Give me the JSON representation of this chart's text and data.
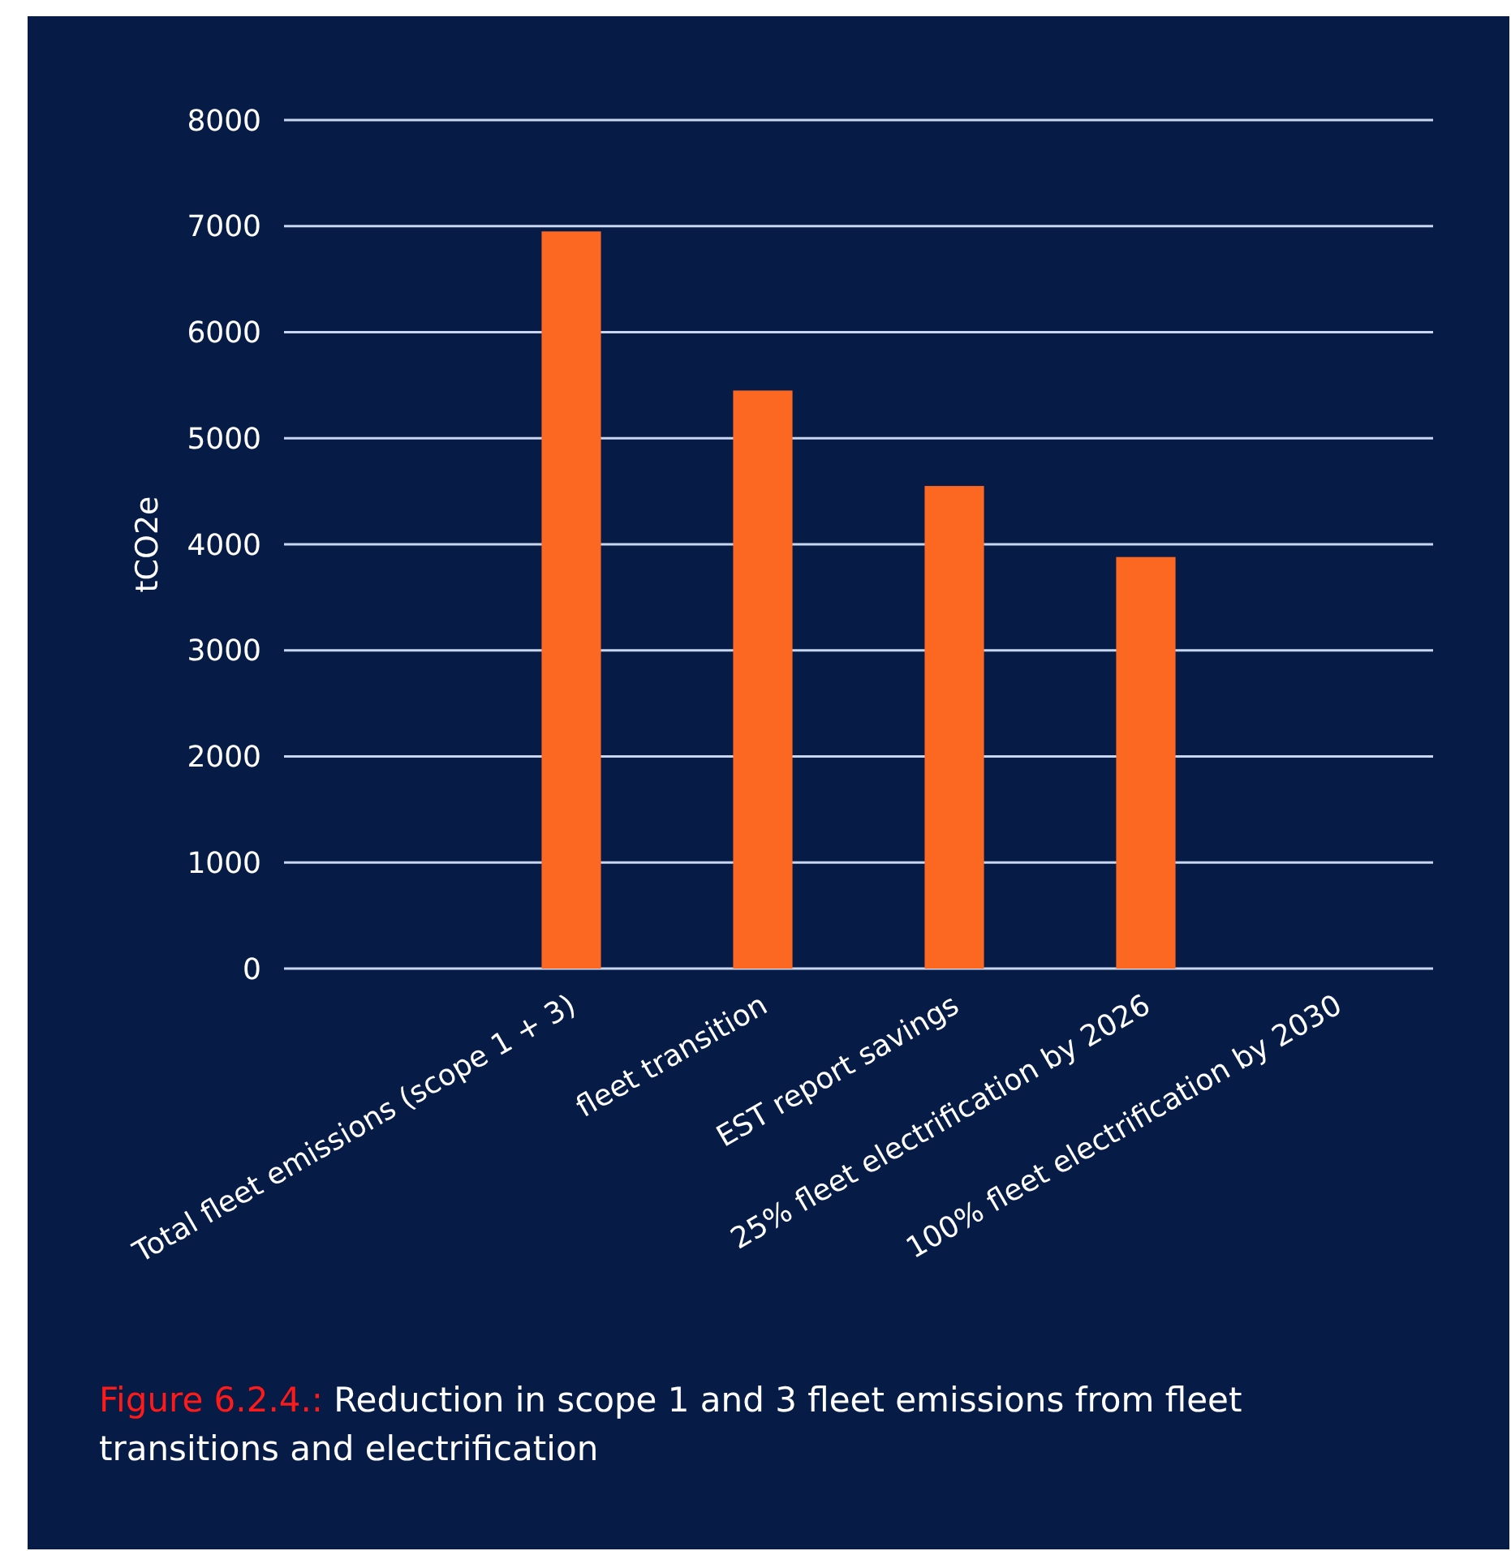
{
  "chart_data": {
    "type": "bar",
    "ylabel": "tCO2e",
    "categories": [
      null,
      "Total fleet emissions (scope 1 + 3)",
      "fleet transition",
      "EST report savings",
      "25% fleet electrification by 2026",
      "100% fleet electrification by 2030"
    ],
    "values": [
      null,
      6950,
      5450,
      4550,
      3880,
      null
    ],
    "color": "#fc6722",
    "ylim": [
      0,
      8000
    ],
    "yticks": [
      0,
      1000,
      2000,
      3000,
      4000,
      5000,
      6000,
      7000,
      8000
    ],
    "grid": "y",
    "annotations": [
      "Figure 6.2.4.: Reduction in scope 1 and 3 fleet emissions from fleet transitions and electrification"
    ]
  }
}
